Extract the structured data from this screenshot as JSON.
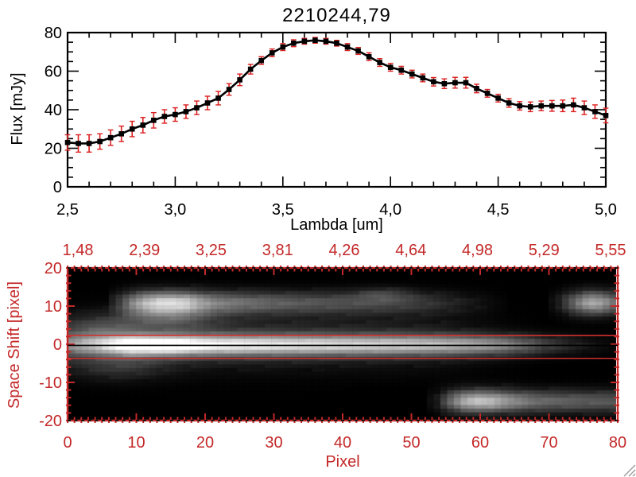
{
  "window": {
    "background": "#ffffff"
  },
  "colors": {
    "axis_black": "#000000",
    "axis_red": "#c42828",
    "error_red": "#db2020",
    "aperture_red": "#d03030",
    "grip_gray": "#9a9a9a"
  },
  "chart_data": [
    {
      "type": "line",
      "title": "2210244,79",
      "xlabel": "Lambda [um]",
      "ylabel": "Flux [mJy]",
      "xlim": [
        2.5,
        5.0
      ],
      "ylim": [
        0,
        80
      ],
      "x_tick_labels": [
        "2,5",
        "3,0",
        "3,5",
        "4,0",
        "4,5",
        "5,0"
      ],
      "x_tick_values": [
        2.5,
        3.0,
        3.5,
        4.0,
        4.5,
        5.0
      ],
      "x_minor_step": 0.1,
      "y_tick_labels": [
        "0",
        "20",
        "40",
        "60",
        "80"
      ],
      "y_tick_values": [
        0,
        20,
        40,
        60,
        80
      ],
      "y_minor_step": 5,
      "marker": "filled-square",
      "line_color": "#000000",
      "marker_color": "#000000",
      "error_color": "#db2020",
      "x": [
        2.5,
        2.55,
        2.6,
        2.65,
        2.7,
        2.75,
        2.8,
        2.85,
        2.9,
        2.95,
        3,
        3.05,
        3.1,
        3.15,
        3.2,
        3.25,
        3.3,
        3.35,
        3.4,
        3.45,
        3.5,
        3.55,
        3.6,
        3.65,
        3.7,
        3.75,
        3.8,
        3.85,
        3.9,
        3.95,
        4,
        4.05,
        4.1,
        4.15,
        4.2,
        4.25,
        4.3,
        4.35,
        4.4,
        4.45,
        4.5,
        4.55,
        4.6,
        4.65,
        4.7,
        4.75,
        4.8,
        4.85,
        4.9,
        4.95,
        5
      ],
      "y": [
        23,
        22.5,
        22.5,
        23.5,
        25.5,
        27.5,
        30,
        32,
        34.5,
        36.5,
        37.5,
        39,
        41,
        43.5,
        46,
        50.5,
        55.5,
        61,
        65.5,
        69.5,
        72.5,
        74.5,
        75.5,
        76,
        75.5,
        74.5,
        72.5,
        70.5,
        67.5,
        64.5,
        62,
        60.5,
        58.5,
        56.5,
        54.5,
        53.5,
        54,
        54,
        51,
        48.5,
        46,
        43.5,
        42,
        41.5,
        42,
        42,
        42,
        42.5,
        41,
        39,
        37
      ],
      "yerr": [
        4,
        4.5,
        4.5,
        4,
        4,
        4,
        4,
        4,
        4,
        3.5,
        3.5,
        3.5,
        3.5,
        3.5,
        3.5,
        3,
        3,
        2.5,
        2,
        2,
        1.8,
        1.8,
        1.5,
        1.5,
        1.5,
        1.5,
        1.8,
        1.8,
        2,
        2,
        2,
        2,
        2,
        2,
        2.2,
        2.5,
        2.8,
        2.8,
        2.2,
        2,
        2,
        2.2,
        2.2,
        2.5,
        2.5,
        2.8,
        3,
        3.5,
        3.5,
        3.5,
        3.8
      ]
    },
    {
      "type": "heatmap",
      "xlabel": "Pixel",
      "ylabel": "Space Shift [pixel]",
      "xlim": [
        0,
        80
      ],
      "ylim": [
        -20,
        20
      ],
      "axis_color": "#c42828",
      "x_tick_labels": [
        "0",
        "10",
        "20",
        "30",
        "40",
        "50",
        "60",
        "70",
        "80"
      ],
      "x_tick_values": [
        0,
        10,
        20,
        30,
        40,
        50,
        60,
        70,
        80
      ],
      "x_minor_step": 1,
      "y_tick_labels": [
        "20",
        "10",
        "0",
        "-10",
        "-20"
      ],
      "y_tick_values": [
        20,
        10,
        0,
        -10,
        -20
      ],
      "y_minor_step": 2,
      "top_axis_labels": [
        "1,48",
        "2,39",
        "3,25",
        "3,81",
        "4,26",
        "4,64",
        "4,98",
        "5,29",
        "5,55"
      ],
      "overlay": {
        "trace_line_y": -0.3,
        "trace_line_color": "#000000",
        "aperture_lines_y": [
          2.3,
          -3.7
        ],
        "aperture_color": "#d03030"
      },
      "heatmap": {
        "cols": 81,
        "rows": 41,
        "background_level": 0,
        "bands": [
          {
            "name": "central-trace",
            "yc": -0.2,
            "sigma": 1.9,
            "profile": [
              [
                0,
                110
              ],
              [
                3,
                140
              ],
              [
                6,
                190
              ],
              [
                8,
                235
              ],
              [
                9,
                255
              ],
              [
                15,
                255
              ],
              [
                17,
                235
              ],
              [
                19,
                215
              ],
              [
                22,
                200
              ],
              [
                26,
                192
              ],
              [
                31,
                185
              ],
              [
                40,
                175
              ],
              [
                48,
                168
              ],
              [
                55,
                160
              ],
              [
                59,
                150
              ],
              [
                62,
                140
              ],
              [
                64,
                128
              ],
              [
                66,
                108
              ],
              [
                68,
                88
              ],
              [
                70,
                66
              ],
              [
                72,
                50
              ],
              [
                74,
                36
              ],
              [
                76,
                24
              ],
              [
                78,
                14
              ],
              [
                80,
                8
              ]
            ]
          },
          {
            "name": "diffuse-envelope",
            "yc": 0.5,
            "sigma": 4.8,
            "profile": [
              [
                0,
                42
              ],
              [
                8,
                52
              ],
              [
                18,
                55
              ],
              [
                28,
                52
              ],
              [
                38,
                46
              ],
              [
                48,
                40
              ],
              [
                54,
                32
              ],
              [
                58,
                22
              ],
              [
                62,
                12
              ],
              [
                66,
                5
              ],
              [
                70,
                0
              ],
              [
                80,
                0
              ]
            ]
          },
          {
            "name": "upper-band",
            "yc": 11.2,
            "sigma": 2.2,
            "profile": [
              [
                0,
                0
              ],
              [
                5,
                0
              ],
              [
                7,
                55
              ],
              [
                9,
                125
              ],
              [
                11,
                180
              ],
              [
                13,
                208
              ],
              [
                15,
                212
              ],
              [
                17,
                198
              ],
              [
                19,
                158
              ],
              [
                21,
                130
              ],
              [
                24,
                114
              ],
              [
                27,
                104
              ],
              [
                30,
                95
              ],
              [
                34,
                86
              ],
              [
                38,
                80
              ],
              [
                42,
                75
              ],
              [
                46,
                70
              ],
              [
                50,
                60
              ],
              [
                53,
                50
              ],
              [
                56,
                36
              ],
              [
                59,
                22
              ],
              [
                62,
                10
              ],
              [
                65,
                0
              ],
              [
                70,
                0
              ],
              [
                72,
                30
              ],
              [
                74,
                95
              ],
              [
                76,
                155
              ],
              [
                77,
                170
              ],
              [
                78,
                162
              ],
              [
                79,
                140
              ],
              [
                80,
                118
              ]
            ]
          },
          {
            "name": "lower-band",
            "yc": -15.5,
            "sigma": 2.1,
            "profile": [
              [
                0,
                0
              ],
              [
                52,
                0
              ],
              [
                54,
                28
              ],
              [
                56,
                105
              ],
              [
                58,
                172
              ],
              [
                60,
                198
              ],
              [
                62,
                188
              ],
              [
                64,
                158
              ],
              [
                66,
                134
              ],
              [
                68,
                115
              ],
              [
                70,
                104
              ],
              [
                73,
                97
              ],
              [
                76,
                92
              ],
              [
                80,
                88
              ]
            ]
          }
        ],
        "blobs": [
          {
            "name": "left-wing-upper",
            "xc": 4,
            "yc": 4,
            "sx": 4,
            "sy": 2.5,
            "amp": 50
          },
          {
            "name": "left-mid-bump",
            "xc": 14,
            "yc": 7,
            "sx": 5,
            "sy": 2.2,
            "amp": 60
          },
          {
            "name": "left-wing-lower",
            "xc": 7,
            "yc": -6,
            "sx": 5,
            "sy": 2.6,
            "amp": 42
          },
          {
            "name": "faint-top-patch",
            "xc": 46,
            "yc": 13.5,
            "sx": 3,
            "sy": 1.3,
            "amp": 40
          }
        ]
      }
    }
  ]
}
